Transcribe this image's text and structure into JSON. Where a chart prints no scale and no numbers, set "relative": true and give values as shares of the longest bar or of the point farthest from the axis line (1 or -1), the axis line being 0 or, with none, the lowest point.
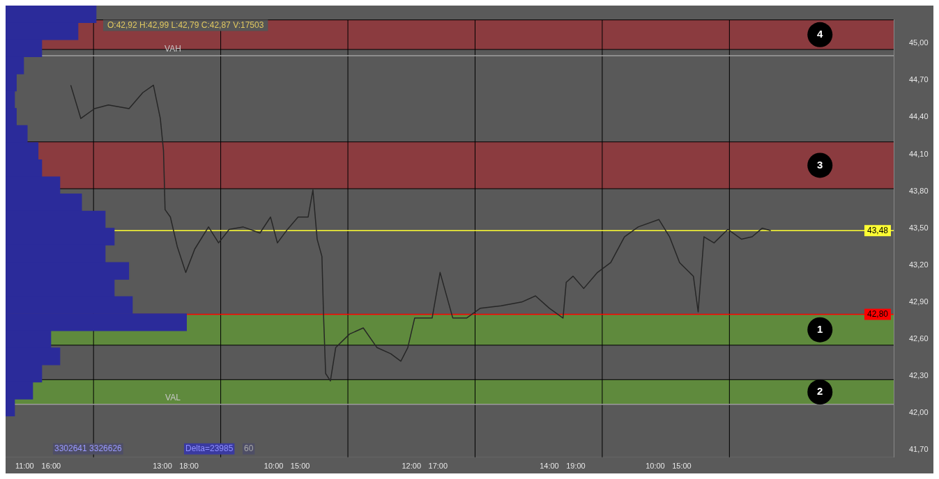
{
  "chart_data": [
    {
      "type": "line",
      "x": [
        "--06-20T19:42",
        "--06-20T21:36",
        "--06-21T00:12",
        "--06-21T02:48",
        "--06-21T06:42",
        "--06-21T09:18",
        "--06-21T11:18",
        "--06-21T12:36",
        "--06-21T13:12",
        "--06-21T13:30",
        "--06-21T14:30",
        "--06-21T15:48",
        "--06-21T17:24",
        "--06-21T19:06",
        "--06-21T21:42",
        "--06-21T23:36",
        "--06-22T01:36",
        "--06-22T04:12",
        "--06-22T07:24",
        "--06-22T09:24",
        "--06-22T10:42",
        "--06-22T12:36",
        "--06-22T14:36",
        "--06-22T16:30",
        "--06-22T17:24",
        "--06-22T18:12",
        "--06-22T19:06",
        "--06-22T19:24",
        "--06-22T19:48",
        "--06-22T20:42",
        "--06-22T21:42",
        "--06-23T00:18",
        "--06-23T02:54",
        "--06-23T05:30",
        "--06-23T08:06",
        "--06-23T10:00",
        "--06-23T11:18",
        "--06-23T12:36",
        "--06-23T15:54",
        "--06-23T17:24",
        "--06-23T19:48",
        "--06-23T22:24",
        "--06-24T01:00",
        "--06-24T04:54",
        "--06-24T08:48",
        "--06-24T11:24",
        "--06-24T14:00",
        "--06-24T16:36",
        "--06-24T17:12",
        "--06-24T18:30",
        "--06-24T20:30",
        "--06-24T23:06",
        "--06-25T01:36",
        "--06-25T04:12",
        "--06-25T06:48",
        "--06-25T10:42",
        "--06-25T12:42",
        "--06-25T14:36",
        "--06-25T17:12",
        "--06-25T18:06",
        "--06-25T19:12",
        "--06-25T21:06",
        "--06-25T23:42",
        "--06-26T02:18",
        "--06-26T04:18",
        "--06-26T06:12",
        "--06-26T07:48"
      ],
      "series": [
        {
          "color": "#262626",
          "values": [
            44.66,
            44.39,
            44.47,
            44.5,
            44.47,
            44.6,
            44.66,
            44.39,
            44.13,
            43.65,
            43.59,
            43.35,
            43.14,
            43.33,
            43.51,
            43.38,
            43.49,
            43.51,
            43.46,
            43.59,
            43.38,
            43.49,
            43.59,
            43.59,
            43.81,
            43.41,
            43.27,
            42.8,
            42.32,
            42.26,
            42.53,
            42.64,
            42.69,
            42.53,
            42.48,
            42.42,
            42.53,
            42.77,
            42.77,
            43.14,
            42.77,
            42.77,
            42.85,
            42.87,
            42.9,
            42.95,
            42.85,
            42.77,
            43.06,
            43.11,
            43.01,
            43.14,
            43.22,
            43.43,
            43.51,
            43.57,
            43.43,
            43.22,
            43.11,
            42.82,
            43.43,
            43.38,
            43.49,
            43.41,
            43.43,
            43.5,
            43.48
          ]
        }
      ],
      "xlim": [
        "--06-20T07:24",
        "--06-27T07:00"
      ],
      "xticks": [
        {
          "value": "--06-20T11:00",
          "label": "11:00"
        },
        {
          "value": "--06-20T16:00",
          "label": "16:00"
        },
        {
          "value": "--06-21T13:00",
          "label": "13:00"
        },
        {
          "value": "--06-21T18:00",
          "label": "18:00"
        },
        {
          "value": "--06-22T10:00",
          "label": "10:00"
        },
        {
          "value": "--06-22T15:00",
          "label": "15:00"
        },
        {
          "value": "--06-23T12:00",
          "label": "12:00"
        },
        {
          "value": "--06-23T17:00",
          "label": "17:00"
        },
        {
          "value": "--06-24T14:00",
          "label": "14:00"
        },
        {
          "value": "--06-24T19:00",
          "label": "19:00"
        },
        {
          "value": "--06-25T10:00",
          "label": "10:00"
        },
        {
          "value": "--06-25T15:00",
          "label": "15:00"
        }
      ],
      "ylim": [
        41.64,
        45.19
      ],
      "yticks": [
        {
          "value": 41.7,
          "label": "41,70"
        },
        {
          "value": 42.0,
          "label": "42,00"
        },
        {
          "value": 42.3,
          "label": "42,30"
        },
        {
          "value": 42.6,
          "label": "42,60"
        },
        {
          "value": 42.9,
          "label": "42,90"
        },
        {
          "value": 43.2,
          "label": "43,20"
        },
        {
          "value": 43.5,
          "label": "43,50"
        },
        {
          "value": 43.8,
          "label": "43,80"
        },
        {
          "value": 44.1,
          "label": "44,10"
        },
        {
          "value": 44.4,
          "label": "44,40"
        },
        {
          "value": 44.7,
          "label": "44,70"
        },
        {
          "value": 45.0,
          "label": "45,00"
        }
      ],
      "grid": false,
      "marker": "none",
      "line_style": "solid",
      "legend": false,
      "bands": [
        {
          "axis": "y",
          "from": 44.95,
          "to": 45.19,
          "label": "4",
          "color": "#8b3b3f"
        },
        {
          "axis": "y",
          "from": 43.82,
          "to": 44.2,
          "label": "3",
          "color": "#8b3b3f"
        },
        {
          "axis": "y",
          "from": 42.55,
          "to": 42.8,
          "label": "1",
          "color": "#5f8a3d"
        },
        {
          "axis": "y",
          "from": 42.07,
          "to": 42.27,
          "label": "2",
          "color": "#5f8a3d"
        }
      ],
      "ref_lines": [
        {
          "axis": "x",
          "value": "--06-21T00:00",
          "color": "#000000"
        },
        {
          "axis": "x",
          "value": "--06-22T00:00",
          "color": "#000000"
        },
        {
          "axis": "x",
          "value": "--06-23T00:00",
          "color": "#000000"
        },
        {
          "axis": "x",
          "value": "--06-24T00:00",
          "color": "#000000"
        },
        {
          "axis": "x",
          "value": "--06-25T00:00",
          "color": "#000000"
        },
        {
          "axis": "x",
          "value": "--06-26T00:00",
          "color": "#000000"
        },
        {
          "axis": "y",
          "value": 44.9,
          "label": "VAH",
          "color": "#a0a0a0"
        },
        {
          "axis": "y",
          "value": 42.07,
          "label": "VAL",
          "color": "#a0a0a0"
        },
        {
          "axis": "y",
          "value": 43.48,
          "label": "43,48",
          "color": "#ffff33"
        },
        {
          "axis": "y",
          "value": 42.8,
          "label": "42,80",
          "color": "#ff0000"
        }
      ],
      "annotations": [
        "O:42,92 H:42,99 L:42,79 C:42,87 V:17503",
        "3302641 3326626",
        "Delta=23985",
        "60"
      ]
    },
    {
      "type": "bar",
      "orientation": "horizontal",
      "relative": true,
      "categories": [
        null,
        null,
        null,
        null,
        null,
        null,
        null,
        null,
        null,
        null,
        null,
        null,
        null,
        null,
        null,
        null,
        null,
        null,
        null,
        null,
        null,
        null,
        null,
        null
      ],
      "values": [
        0.5,
        0.4,
        0.2,
        0.1,
        0.06,
        0.05,
        0.06,
        0.12,
        0.18,
        0.2,
        0.3,
        0.42,
        0.55,
        0.6,
        0.55,
        0.68,
        0.6,
        0.7,
        1,
        0.25,
        0.3,
        0.2,
        0.15,
        0.05
      ],
      "color": "#2b2b9a"
    }
  ]
}
